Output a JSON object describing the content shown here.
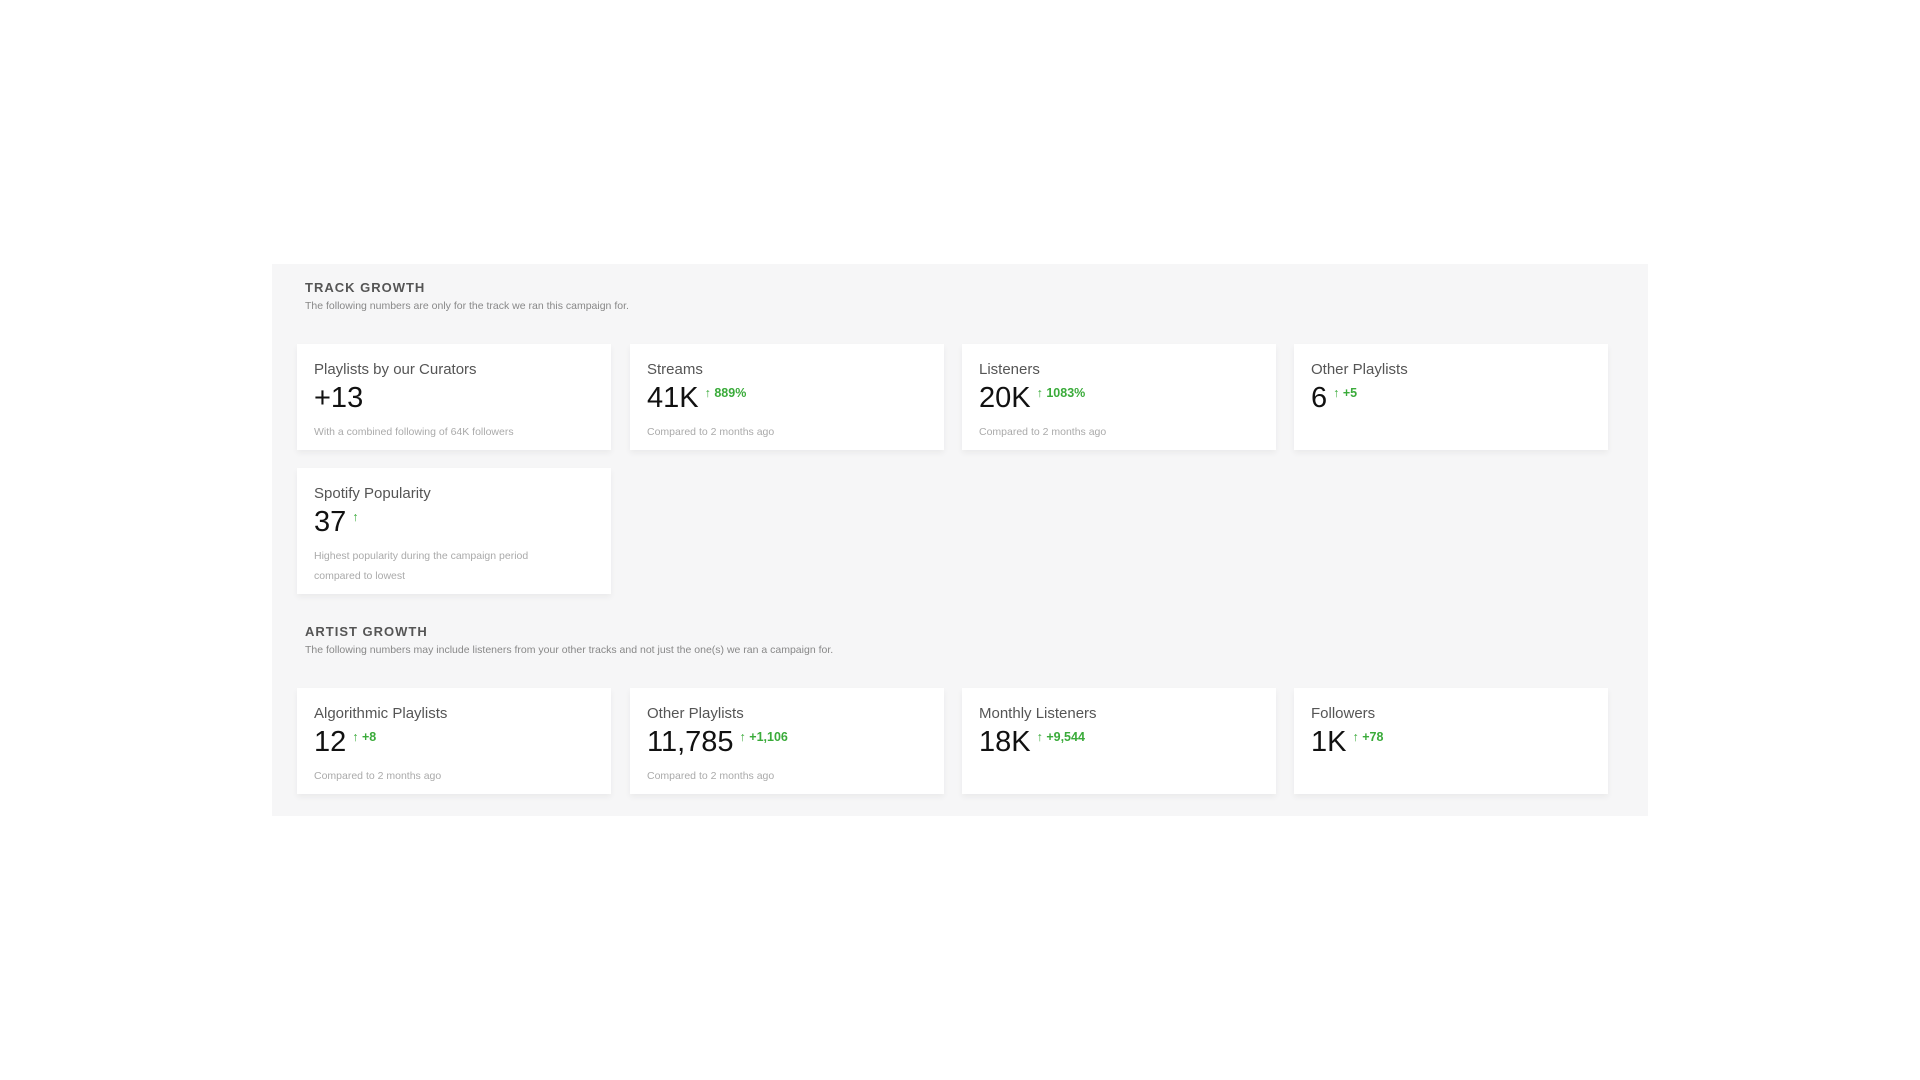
{
  "track": {
    "title": "TRACK GROWTH",
    "subtitle": "The following numbers are only for the track we ran this campaign for.",
    "cards": [
      {
        "title": "Playlists by our Curators",
        "value": "+13",
        "change": "",
        "note": "With a combined following of 64K followers"
      },
      {
        "title": "Streams",
        "value": "41K",
        "change": "↑ 889%",
        "note": "Compared to 2 months ago"
      },
      {
        "title": "Listeners",
        "value": "20K",
        "change": "↑ 1083%",
        "note": "Compared to 2 months ago"
      },
      {
        "title": "Other Playlists",
        "value": "6",
        "change": "↑ +5",
        "note": ""
      },
      {
        "title": "Spotify Popularity",
        "value": "37",
        "change": "↑",
        "note": "Highest popularity during the campaign period compared to lowest"
      }
    ]
  },
  "artist": {
    "title": "ARTIST GROWTH",
    "subtitle": "The following numbers may include listeners from your other tracks and not just the one(s) we ran a campaign for.",
    "cards": [
      {
        "title": "Algorithmic Playlists",
        "value": "12",
        "change": "↑ +8",
        "note": "Compared to 2 months ago"
      },
      {
        "title": "Other Playlists",
        "value": "11,785",
        "change": "↑ +1,106",
        "note": "Compared to 2 months ago"
      },
      {
        "title": "Monthly Listeners",
        "value": "18K",
        "change": "↑ +9,544",
        "note": ""
      },
      {
        "title": "Followers",
        "value": "1K",
        "change": "↑ +78",
        "note": ""
      }
    ]
  },
  "colors": {
    "positive": "#3aab3a"
  }
}
